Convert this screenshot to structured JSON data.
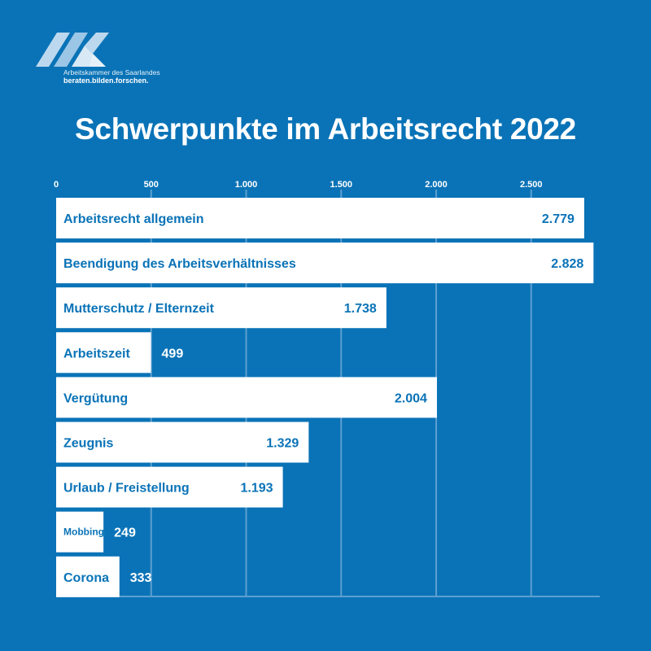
{
  "logo": {
    "org_name": "Arbeitskammer des Saarlandes",
    "tagline": "beraten.bilden.forschen."
  },
  "colors": {
    "background": "#0a73b7",
    "bar": "#ffffff",
    "bar_text": "#0a73b7",
    "outside_value_text": "#ffffff",
    "gridline": "#5c9fd0"
  },
  "chart_data": {
    "type": "bar",
    "orientation": "horizontal",
    "title": "Schwerpunkte im Arbeitsrecht 2022",
    "categories": [
      "Arbeitsrecht allgemein",
      "Beendigung des Arbeitsverhältnisses",
      "Mutterschutz / Elternzeit",
      "Arbeitszeit",
      "Vergütung",
      "Zeugnis",
      "Urlaub / Freistellung",
      "Mobbing",
      "Corona"
    ],
    "values": [
      2779,
      2828,
      1738,
      499,
      2004,
      1329,
      1193,
      249,
      333
    ],
    "value_labels": [
      "2.779",
      "2.828",
      "1.738",
      "499",
      "2.004",
      "1.329",
      "1.193",
      "249",
      "333"
    ],
    "xlim": [
      0,
      2880
    ],
    "xticks": [
      0,
      500,
      1000,
      1500,
      2000,
      2500
    ],
    "xtick_labels": [
      "0",
      "500",
      "1.000",
      "1.500",
      "2.000",
      "2.500"
    ],
    "xaxis_position": "top",
    "grid": true,
    "legend": "none"
  }
}
